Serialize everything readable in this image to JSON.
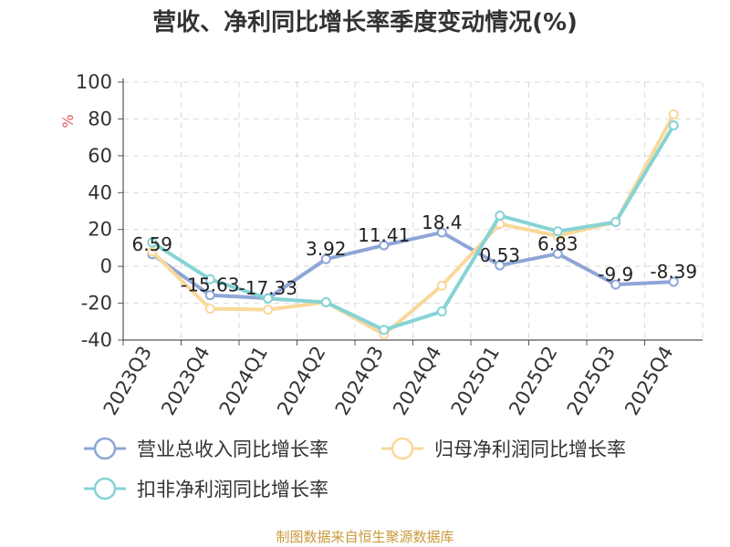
{
  "chart_data": {
    "type": "line",
    "title": "营收、净利同比增长率季度变动情况(%)",
    "ylabel": "%",
    "ylim": [
      -40,
      100
    ],
    "yticks": [
      100,
      80,
      60,
      40,
      20,
      0,
      -20,
      -40
    ],
    "grid": true,
    "legend_position": "bottom",
    "categories": [
      "2023Q3",
      "2023Q4",
      "2024Q1",
      "2024Q2",
      "2024Q3",
      "2024Q4",
      "2025Q1",
      "2025Q2",
      "2025Q3",
      "2025Q4"
    ],
    "series": [
      {
        "name": "营业总收入同比增长率",
        "color": "#8ea6d6",
        "values": [
          6.59,
          -15.63,
          -17.33,
          3.92,
          11.41,
          18.4,
          0.53,
          6.83,
          -9.9,
          -8.39
        ],
        "labels": [
          "6.59",
          "-15.63",
          "-17.33",
          "3.92",
          "11.41",
          "18.4",
          "0.53",
          "6.83",
          "-9.9",
          "-8.39"
        ]
      },
      {
        "name": "归母净利润同比增长率",
        "color": "#f9d89a",
        "values": [
          8,
          -23,
          -23.5,
          -19.5,
          -37,
          -10.5,
          23,
          16.5,
          24,
          82.5
        ]
      },
      {
        "name": "扣非净利润同比增长率",
        "color": "#86d3d5",
        "values": [
          13,
          -7,
          -17.5,
          -19.5,
          -34.5,
          -24.5,
          27.5,
          19,
          24,
          76.5
        ]
      }
    ]
  },
  "source": "制图数据来自恒生聚源数据库",
  "colors": {
    "unit_label": "#e05a5a",
    "source_text": "#c99a3a",
    "grid": "#d9d9d9",
    "axis": "#555555"
  }
}
